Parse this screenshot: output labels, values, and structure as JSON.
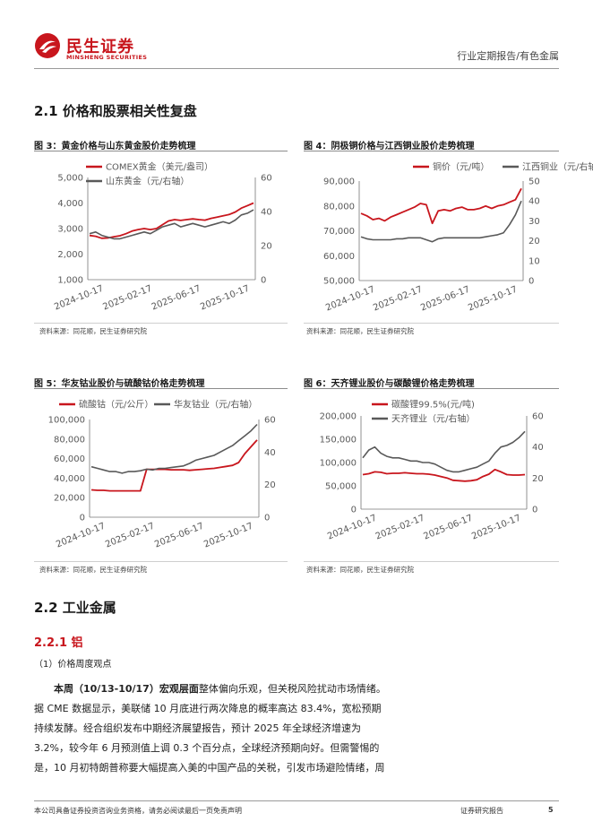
{
  "header": {
    "brand_cn": "民生证券",
    "brand_en": "MINSHENG SECURITIES",
    "report_type": "行业定期报告/有色金属"
  },
  "section_2_1": "2.1 价格和股票相关性复盘",
  "section_2_2": "2.2 工业金属",
  "section_2_2_1": "2.2.1 铝",
  "source_text": "资料来源：同花顺，民生证券研究院",
  "chart_data": [
    {
      "id": "fig3",
      "type": "line",
      "title": "图 3：黄金价格与山东黄金股价走势梳理",
      "x_ticks": [
        "2024-10-17",
        "2025-02-17",
        "2025-06-17",
        "2025-10-17"
      ],
      "y_left": {
        "ticks": [
          "5,000",
          "4,000",
          "3,000",
          "2,000",
          "1,000"
        ],
        "min": 1000,
        "max": 5000
      },
      "y_right": {
        "ticks": [
          "60",
          "40",
          "20",
          "0"
        ],
        "min": 0,
        "max": 60
      },
      "series": [
        {
          "name": "COMEX黄金（美元/盎司）",
          "axis": "left",
          "color": "#c8161d",
          "values": [
            2730,
            2700,
            2620,
            2630,
            2680,
            2720,
            2800,
            2900,
            2960,
            3000,
            2960,
            3000,
            3150,
            3300,
            3350,
            3320,
            3350,
            3380,
            3350,
            3330,
            3400,
            3450,
            3500,
            3550,
            3650,
            3800,
            3900,
            4000
          ]
        },
        {
          "name": "山东黄金（元/右轴）",
          "axis": "right",
          "color": "#595959",
          "values": [
            27,
            28,
            26,
            25,
            24,
            24,
            25,
            26,
            27,
            28,
            27,
            29,
            31,
            32,
            33,
            31,
            32,
            33,
            32,
            31,
            32,
            33,
            34,
            33,
            35,
            38,
            39,
            41
          ]
        }
      ]
    },
    {
      "id": "fig4",
      "type": "line",
      "title": "图 4：阴极铜价格与江西铜业股价走势梳理",
      "x_ticks": [
        "2024-10-17",
        "2025-02-17",
        "2025-06-17",
        "2025-10-17"
      ],
      "y_left": {
        "ticks": [
          "90,000",
          "80,000",
          "70,000",
          "60,000",
          "50,000"
        ],
        "min": 50000,
        "max": 90000
      },
      "y_right": {
        "ticks": [
          "50",
          "40",
          "30",
          "20",
          "10",
          "0"
        ],
        "min": 0,
        "max": 50
      },
      "series": [
        {
          "name": "铜价（元/吨）",
          "axis": "left",
          "color": "#c8161d",
          "values": [
            77000,
            76000,
            74500,
            75000,
            74000,
            75500,
            76500,
            77500,
            78500,
            79500,
            81000,
            80500,
            73000,
            78000,
            78500,
            78000,
            79000,
            79500,
            78500,
            78500,
            79000,
            80000,
            79000,
            80000,
            80500,
            81500,
            82500,
            87000
          ]
        },
        {
          "name": "江西铜业（元/右轴）",
          "axis": "right",
          "color": "#595959",
          "values": [
            22,
            21,
            20.5,
            20.5,
            20.5,
            20.5,
            21,
            21,
            21.5,
            21.5,
            21.5,
            20.5,
            19.5,
            21,
            21.5,
            21.5,
            21.5,
            21.5,
            21.5,
            21.5,
            21.5,
            22,
            22.5,
            23,
            24,
            28,
            33,
            40
          ]
        }
      ]
    },
    {
      "id": "fig5",
      "type": "line",
      "title": "图 5：华友钴业股价与硫酸钴价格走势梳理",
      "x_ticks": [
        "2024-10-17",
        "2025-02-17",
        "2025-06-17",
        "2025-10-17"
      ],
      "y_left": {
        "ticks": [
          "100,000",
          "80,000",
          "60,000",
          "40,000",
          "20,000",
          "0"
        ],
        "min": 0,
        "max": 100000
      },
      "y_right": {
        "ticks": [
          "60",
          "40",
          "20",
          "0"
        ],
        "min": 0,
        "max": 60
      },
      "series": [
        {
          "name": "硫酸钴（元/公斤）",
          "axis": "left",
          "color": "#c8161d",
          "values": [
            28000,
            27500,
            27500,
            27000,
            27000,
            27000,
            27000,
            27000,
            27000,
            49000,
            49000,
            49000,
            49000,
            48500,
            48500,
            48500,
            48000,
            48500,
            49000,
            49500,
            50000,
            51000,
            52000,
            53000,
            56000,
            65000,
            72000,
            79000
          ]
        },
        {
          "name": "华友钴业（元/右轴）",
          "axis": "right",
          "color": "#595959",
          "values": [
            31,
            30,
            29,
            28,
            28,
            27,
            28,
            28,
            28.5,
            29.5,
            29,
            30,
            30,
            30.5,
            31,
            31.5,
            33,
            35,
            36,
            37,
            38,
            40,
            42,
            44,
            47,
            50,
            53,
            57
          ]
        }
      ]
    },
    {
      "id": "fig6",
      "type": "line",
      "title": "图 6：天齐锂业股价与碳酸锂价格走势梳理",
      "x_ticks": [
        "2024-10-17",
        "2025-02-17",
        "2025-06-17",
        "2025-10-17"
      ],
      "y_left": {
        "ticks": [
          "200,000",
          "150,000",
          "100,000",
          "50,000",
          "0"
        ],
        "min": 0,
        "max": 200000
      },
      "y_right": {
        "ticks": [
          "60",
          "40",
          "20",
          "0"
        ],
        "min": 0,
        "max": 60
      },
      "series": [
        {
          "name": "碳酸锂99.5%(元/吨)",
          "axis": "left",
          "color": "#c8161d",
          "values": [
            74000,
            76000,
            80000,
            79000,
            76000,
            77000,
            77000,
            78000,
            77000,
            76000,
            76000,
            75000,
            73000,
            70000,
            67000,
            62000,
            61000,
            60000,
            61000,
            63000,
            70000,
            75000,
            85000,
            80000,
            74000,
            73000,
            73000,
            74000
          ]
        },
        {
          "name": "天齐锂业（元/右轴）",
          "axis": "right",
          "color": "#595959",
          "values": [
            33,
            38,
            40,
            36,
            34,
            33,
            33,
            32,
            31,
            31,
            30,
            30,
            29,
            27,
            25,
            24,
            24,
            25,
            26,
            27,
            29,
            31,
            36,
            40,
            41,
            43,
            46,
            50
          ]
        }
      ]
    }
  ],
  "price_view": {
    "label": "（1）价格周度观点",
    "lead_week": "本周（10/13-10/17）",
    "lead_macro": "宏观层面",
    "line1_rest": "整体偏向乐观，但关税风险扰动市场情绪。",
    "line2": "据 CME 数据显示，美联储 10 月底进行两次降息的概率高达 83.4%，宽松预期",
    "line3": "持续发酵。经合组织发布中期经济展望报告，预计 2025 年全球经济增速为",
    "line4": "3.2%，较今年 6 月预测值上调 0.3 个百分点，全球经济预期向好。但需警惕的",
    "line5": "是，10 月初特朗普称要大幅提高入美的中国产品的关税，引发市场避险情绪，周"
  },
  "footer": {
    "disclaimer": "本公司具备证券投资咨询业务资格，请务必阅读最后一页免责声明",
    "doc_type": "证券研究报告",
    "page_number": "5"
  }
}
